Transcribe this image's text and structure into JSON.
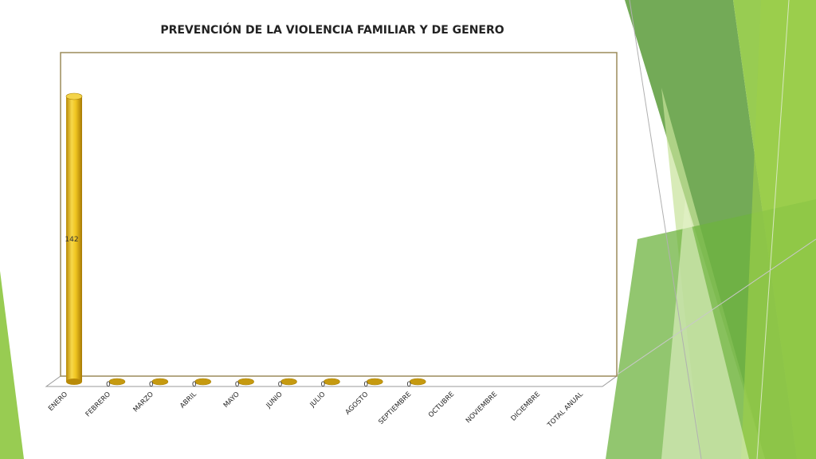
{
  "chart_data": {
    "type": "bar",
    "title": "PREVENCIÓN DE LA VIOLENCIA FAMILIAR Y DE GENERO",
    "categories": [
      "ENERO",
      "FEBRERO",
      "MARZO",
      "ABRIL",
      "MAYO",
      "JUNIO",
      "JULIO",
      "AGOSTO",
      "SEPTIEMBRE",
      "OCTUBRE",
      "NOVIEMBRE",
      "DICIEMBRE",
      "TOTAL ANUAL"
    ],
    "values": [
      142,
      0,
      0,
      0,
      0,
      0,
      0,
      0,
      0,
      null,
      null,
      null,
      null
    ],
    "value_labels": [
      "142",
      "0",
      "0",
      "0",
      "0",
      "0",
      "0",
      "0",
      "0",
      "",
      "",
      "",
      ""
    ],
    "ylim": [
      0,
      142
    ],
    "grid": false,
    "bar_style": "3d-cylinder",
    "bar_color": "#e6b81e"
  },
  "theme": {
    "accent_dark": "#5b9b3a",
    "accent_mid": "#8dc63f",
    "accent_light": "#c8e39a"
  }
}
